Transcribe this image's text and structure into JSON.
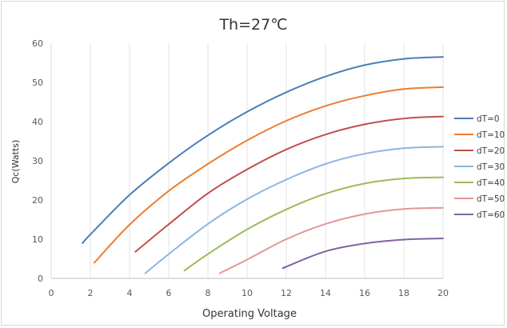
{
  "chart_data": {
    "type": "line",
    "title": "Th=27℃",
    "xlabel": "Operating Voltage",
    "ylabel": "Qc(Watts)",
    "xlim": [
      0,
      20
    ],
    "ylim": [
      0,
      60
    ],
    "x_ticks": [
      0,
      2,
      4,
      6,
      8,
      10,
      12,
      14,
      16,
      18,
      20
    ],
    "y_ticks": [
      0,
      10,
      20,
      30,
      40,
      50,
      60
    ],
    "grid": "vertical",
    "legend_position": "right",
    "series": [
      {
        "name": "dT=0",
        "color": "#4a7ebb",
        "x": [
          1.6,
          2.0,
          4.0,
          6.0,
          8.0,
          10.0,
          12.0,
          14.0,
          16.0,
          18.0,
          20.0
        ],
        "y": [
          9.0,
          11.2,
          21.3,
          29.4,
          36.5,
          42.5,
          47.5,
          51.5,
          54.4,
          56.0,
          56.5
        ]
      },
      {
        "name": "dT=10",
        "color": "#ed7d31",
        "x": [
          2.2,
          4.0,
          6.0,
          8.0,
          10.0,
          12.0,
          14.0,
          16.0,
          18.0,
          20.0
        ],
        "y": [
          4.0,
          13.7,
          22.3,
          29.2,
          35.2,
          40.2,
          44.0,
          46.6,
          48.3,
          48.8
        ]
      },
      {
        "name": "dT=20",
        "color": "#c0504d",
        "x": [
          4.3,
          6.0,
          8.0,
          10.0,
          12.0,
          14.0,
          16.0,
          18.0,
          20.0
        ],
        "y": [
          6.8,
          13.8,
          21.7,
          27.8,
          32.9,
          36.7,
          39.3,
          40.8,
          41.3
        ]
      },
      {
        "name": "dT=30",
        "color": "#8eb4e3",
        "x": [
          4.8,
          6.0,
          8.0,
          10.0,
          12.0,
          14.0,
          16.0,
          18.0,
          20.0
        ],
        "y": [
          1.3,
          6.2,
          13.9,
          20.2,
          25.2,
          29.2,
          31.8,
          33.2,
          33.6
        ]
      },
      {
        "name": "dT=40",
        "color": "#9bbb59",
        "x": [
          6.8,
          8.0,
          10.0,
          12.0,
          14.0,
          16.0,
          18.0,
          20.0
        ],
        "y": [
          2.0,
          6.2,
          12.5,
          17.6,
          21.6,
          24.2,
          25.5,
          25.8
        ]
      },
      {
        "name": "dT=50",
        "color": "#e6959a",
        "x": [
          8.6,
          10.0,
          12.0,
          14.0,
          16.0,
          18.0,
          20.0
        ],
        "y": [
          1.3,
          4.8,
          10.0,
          13.9,
          16.4,
          17.7,
          18.0
        ]
      },
      {
        "name": "dT=60",
        "color": "#8064a2",
        "x": [
          11.9,
          12.0,
          14.0,
          16.0,
          18.0,
          20.0
        ],
        "y": [
          2.7,
          3.0,
          6.9,
          8.9,
          9.9,
          10.2
        ]
      }
    ]
  }
}
